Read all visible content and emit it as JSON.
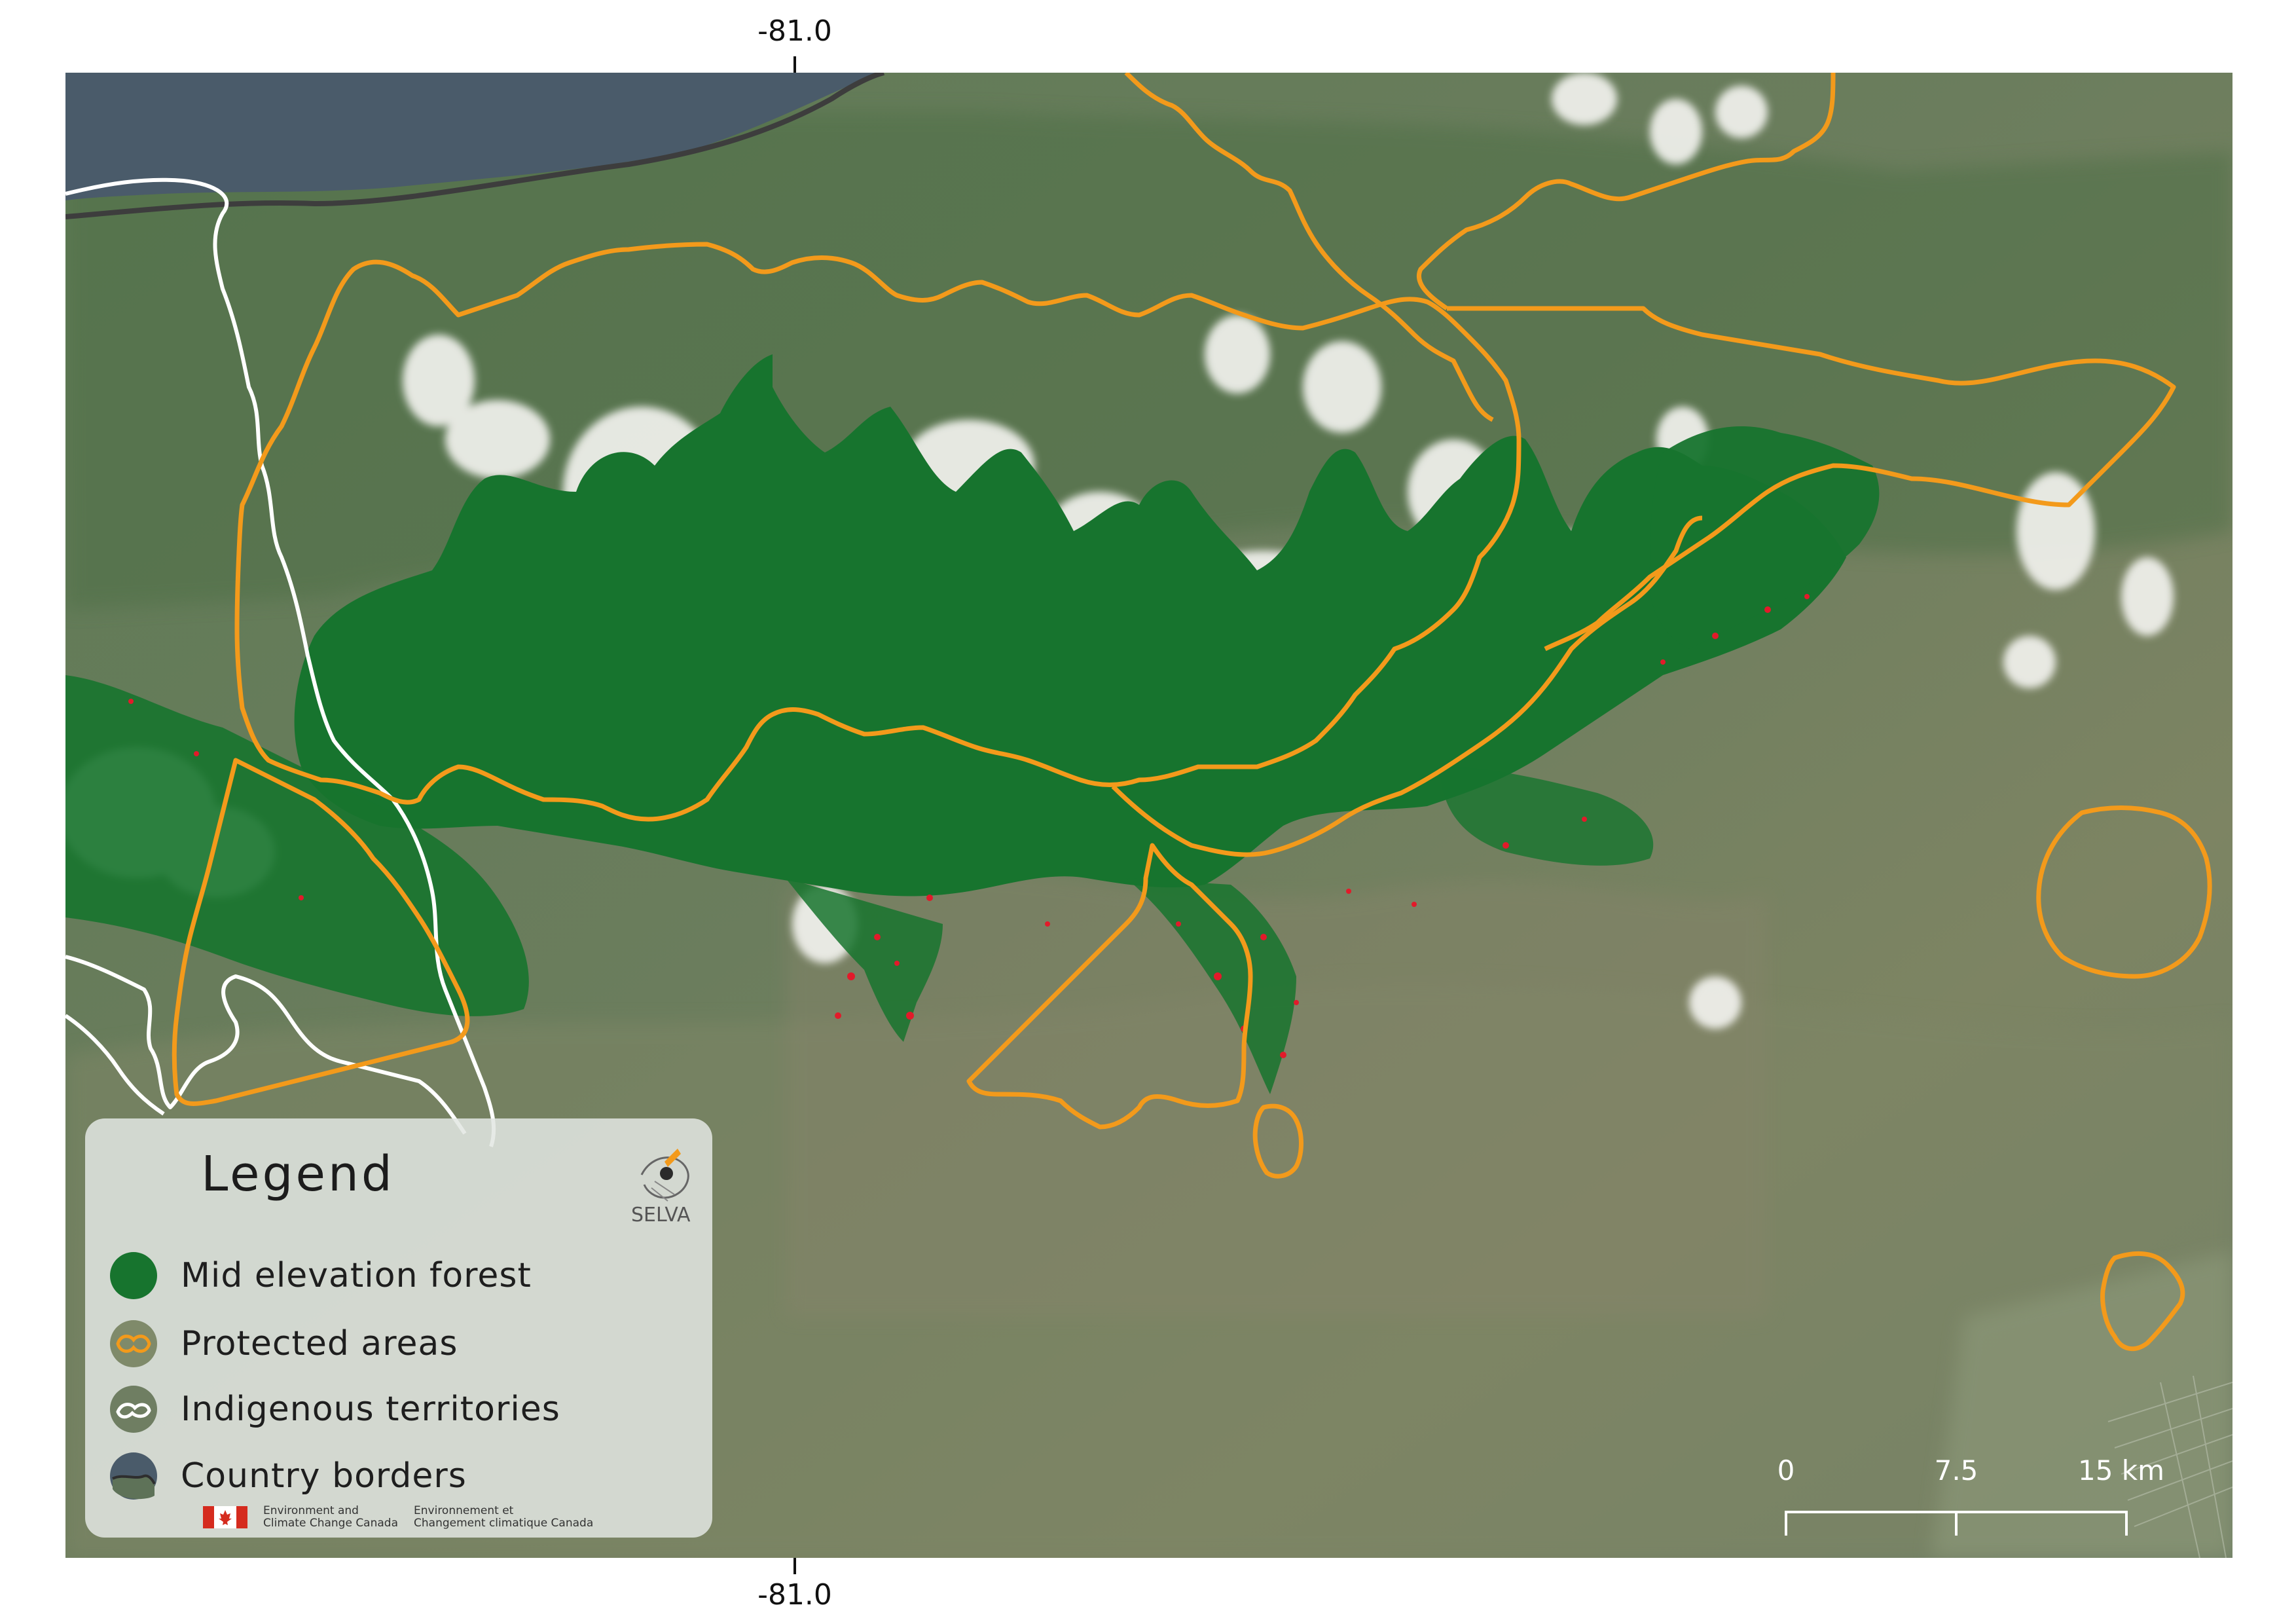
{
  "grid": {
    "top_label": "-81.0",
    "bottom_label": "-81.0"
  },
  "legend": {
    "title": "Legend",
    "items": [
      {
        "label": "Mid elevation forest",
        "icon": "forest-swatch-icon"
      },
      {
        "label": "Protected areas",
        "icon": "protected-area-outline-icon"
      },
      {
        "label": "Indigenous territories",
        "icon": "indigenous-territory-outline-icon"
      },
      {
        "label": "Country borders",
        "icon": "country-border-line-icon"
      }
    ],
    "logo_text": "SELVA",
    "agency": {
      "en_line1": "Environment and",
      "en_line2": "Climate Change Canada",
      "fr_line1": "Environnement et",
      "fr_line2": "Changement climatique Canada"
    }
  },
  "scale_bar": {
    "labels": [
      "0",
      "7.5",
      "15 km"
    ]
  },
  "colors": {
    "forest": "#17742e",
    "protected_areas": "#f39a1b",
    "indigenous_territories": "#ffffff",
    "country_border": "#3d3d3d",
    "sea": "#4a5b6a",
    "hotspot": "#e21a2a"
  }
}
